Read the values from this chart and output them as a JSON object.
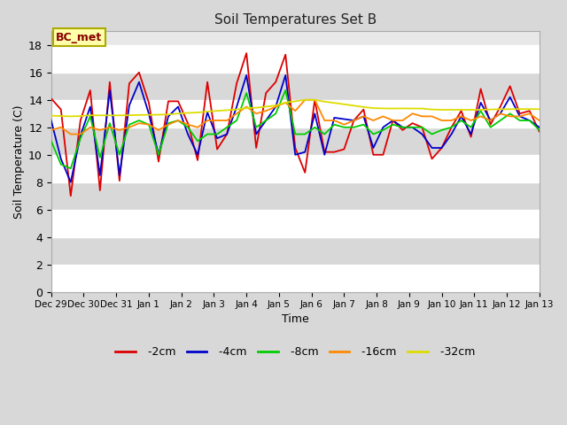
{
  "title": "Soil Temperatures Set B",
  "xlabel": "Time",
  "ylabel": "Soil Temperature (C)",
  "annotation": "BC_met",
  "ylim": [
    0,
    19
  ],
  "yticks": [
    0,
    2,
    4,
    6,
    8,
    10,
    12,
    14,
    16,
    18
  ],
  "figure_bg": "#d8d8d8",
  "plot_bg": "#e8e8e8",
  "series_colors": {
    "-2cm": "#dd0000",
    "-4cm": "#0000cc",
    "-8cm": "#00cc00",
    "-16cm": "#ff8800",
    "-32cm": "#dddd00"
  },
  "x_labels": [
    "Dec 29",
    "Dec 30",
    "Dec 31",
    "Jan 1",
    "Jan 2",
    "Jan 3",
    "Jan 4",
    "Jan 5",
    "Jan 6",
    "Jan 7",
    "Jan 8",
    "Jan 9",
    "Jan 10",
    "Jan 11",
    "Jan 12",
    "Jan 13"
  ],
  "data_2cm": [
    14.1,
    13.3,
    7.0,
    12.5,
    14.7,
    7.4,
    15.3,
    8.1,
    15.2,
    16.0,
    13.8,
    9.5,
    13.9,
    13.9,
    12.3,
    9.6,
    15.3,
    10.4,
    11.5,
    15.2,
    17.4,
    10.5,
    14.5,
    15.3,
    17.3,
    10.5,
    8.7,
    14.0,
    10.2,
    10.2,
    10.4,
    12.5,
    13.3,
    10.0,
    10.0,
    12.5,
    11.8,
    12.3,
    12.0,
    9.7,
    10.5,
    12.0,
    13.2,
    11.3,
    14.8,
    12.2,
    13.5,
    15.0,
    13.0,
    13.2,
    11.7
  ],
  "data_4cm": [
    12.5,
    9.7,
    8.0,
    11.4,
    13.5,
    8.5,
    14.7,
    8.5,
    13.6,
    15.3,
    13.0,
    10.0,
    12.8,
    13.5,
    11.5,
    10.0,
    13.1,
    11.2,
    11.5,
    13.5,
    15.8,
    11.5,
    12.5,
    13.5,
    15.8,
    10.0,
    10.2,
    13.0,
    10.0,
    12.7,
    12.6,
    12.5,
    12.8,
    10.5,
    12.0,
    12.5,
    12.0,
    12.0,
    11.5,
    10.5,
    10.5,
    11.5,
    12.8,
    11.5,
    13.8,
    12.5,
    13.0,
    14.2,
    12.8,
    12.5,
    12.0
  ],
  "data_8cm": [
    11.0,
    9.3,
    9.0,
    11.2,
    12.8,
    9.8,
    12.3,
    10.0,
    12.2,
    12.5,
    12.2,
    10.0,
    12.3,
    12.5,
    12.0,
    11.0,
    11.5,
    11.5,
    12.0,
    12.5,
    14.5,
    12.0,
    12.5,
    13.0,
    14.7,
    11.5,
    11.5,
    12.0,
    11.5,
    12.2,
    12.0,
    12.0,
    12.2,
    11.5,
    11.8,
    12.2,
    12.0,
    12.0,
    12.0,
    11.5,
    11.8,
    12.0,
    12.5,
    12.0,
    13.2,
    12.0,
    12.5,
    13.0,
    12.5,
    12.5,
    11.8
  ],
  "data_16cm": [
    11.8,
    12.0,
    11.5,
    11.5,
    12.0,
    11.8,
    12.0,
    11.8,
    12.0,
    12.3,
    12.2,
    11.8,
    12.2,
    12.5,
    12.2,
    12.0,
    12.5,
    12.5,
    12.5,
    13.0,
    13.5,
    13.0,
    13.2,
    13.5,
    13.8,
    13.2,
    14.0,
    14.0,
    12.5,
    12.5,
    12.2,
    12.5,
    12.8,
    12.5,
    12.8,
    12.5,
    12.5,
    13.0,
    12.8,
    12.8,
    12.5,
    12.5,
    12.8,
    12.5,
    12.8,
    12.5,
    13.0,
    12.8,
    12.8,
    13.0,
    12.5
  ],
  "data_32cm": [
    12.85,
    12.82,
    12.8,
    12.82,
    12.88,
    12.87,
    12.87,
    12.87,
    12.88,
    12.9,
    12.91,
    12.92,
    12.94,
    13.0,
    13.05,
    13.08,
    13.15,
    13.2,
    13.25,
    13.3,
    13.4,
    13.43,
    13.5,
    13.6,
    13.8,
    13.9,
    14.0,
    14.0,
    13.87,
    13.78,
    13.68,
    13.58,
    13.48,
    13.4,
    13.38,
    13.37,
    13.38,
    13.37,
    13.37,
    13.3,
    13.28,
    13.28,
    13.28,
    13.28,
    13.28,
    13.3,
    13.32,
    13.32,
    13.33,
    13.33,
    13.32
  ]
}
